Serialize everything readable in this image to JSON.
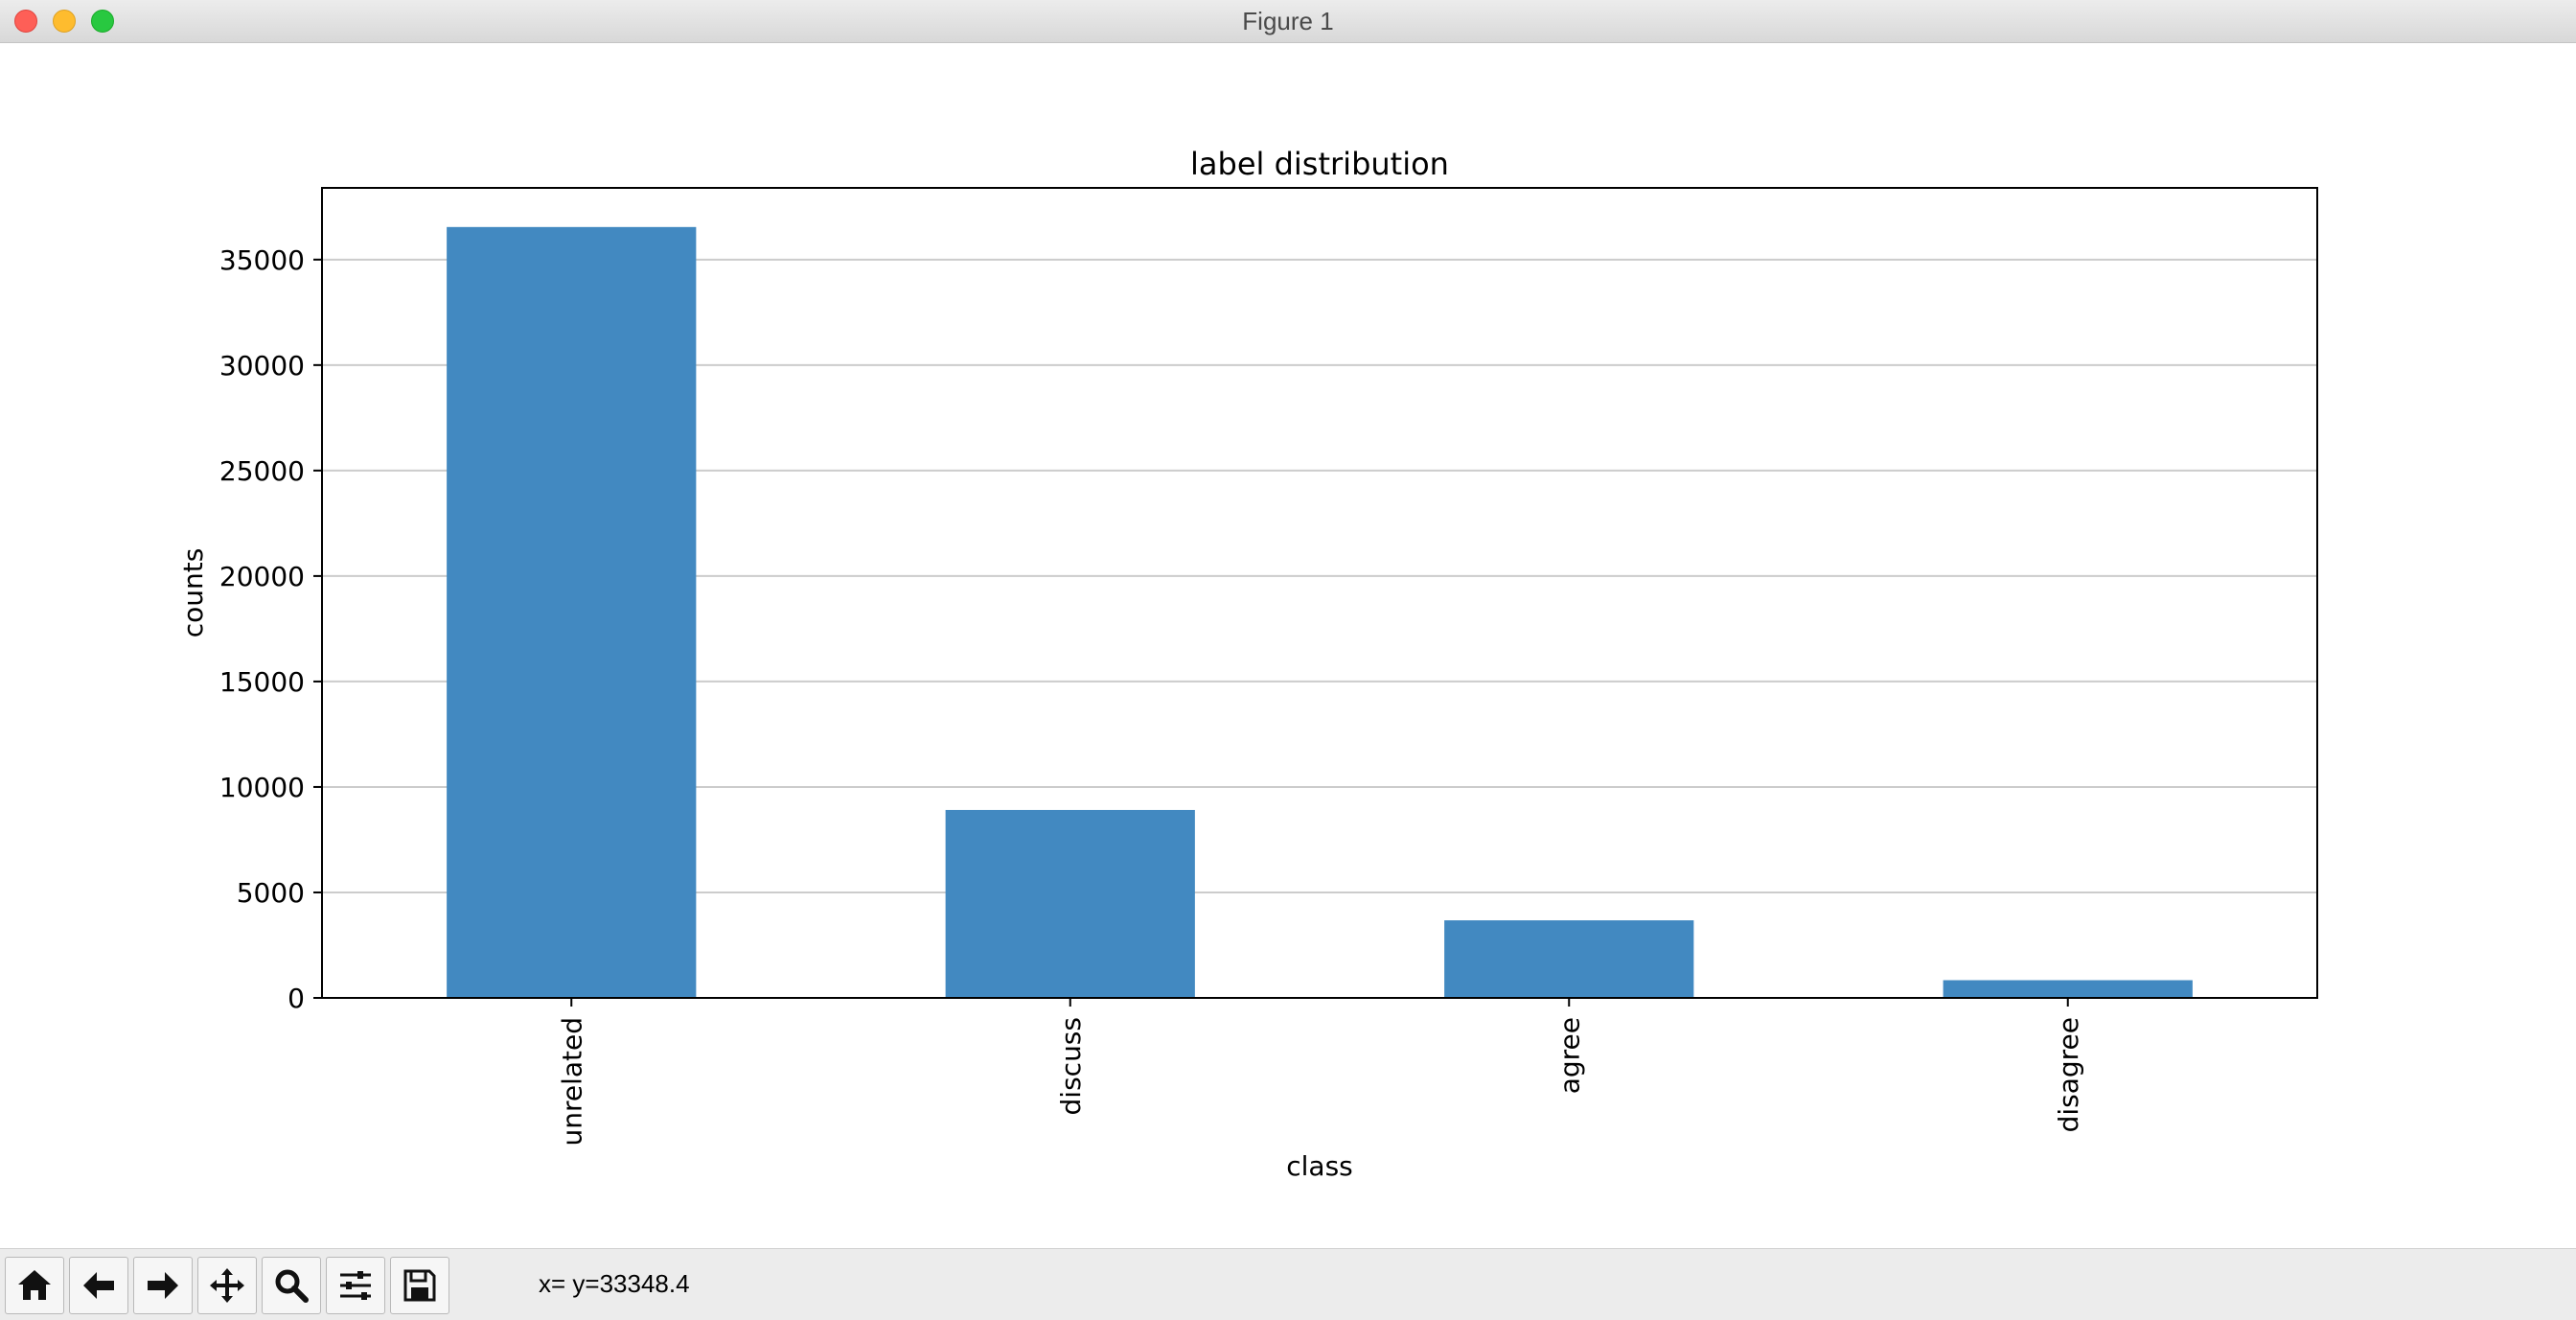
{
  "window": {
    "title": "Figure 1"
  },
  "toolbar": {
    "tools": [
      {
        "name": "home-icon"
      },
      {
        "name": "back-arrow-icon"
      },
      {
        "name": "forward-arrow-icon"
      },
      {
        "name": "pan-icon"
      },
      {
        "name": "zoom-icon"
      },
      {
        "name": "configure-subplots-icon"
      },
      {
        "name": "save-icon"
      }
    ],
    "coordinates": "x= y=33348.4"
  },
  "chart_data": {
    "type": "bar",
    "title": "label distribution",
    "xlabel": "class",
    "ylabel": "counts",
    "categories": [
      "unrelated",
      "discuss",
      "agree",
      "disagree"
    ],
    "values": [
      36545,
      8909,
      3678,
      840
    ],
    "ylim": [
      0,
      38400
    ],
    "yticks": [
      0,
      5000,
      10000,
      15000,
      20000,
      25000,
      30000,
      35000
    ],
    "ytick_labels": [
      "0",
      "5000",
      "10000",
      "15000",
      "20000",
      "25000",
      "30000",
      "35000"
    ],
    "grid": "horizontal",
    "bar_color": "#4289c1",
    "legend": "none"
  }
}
